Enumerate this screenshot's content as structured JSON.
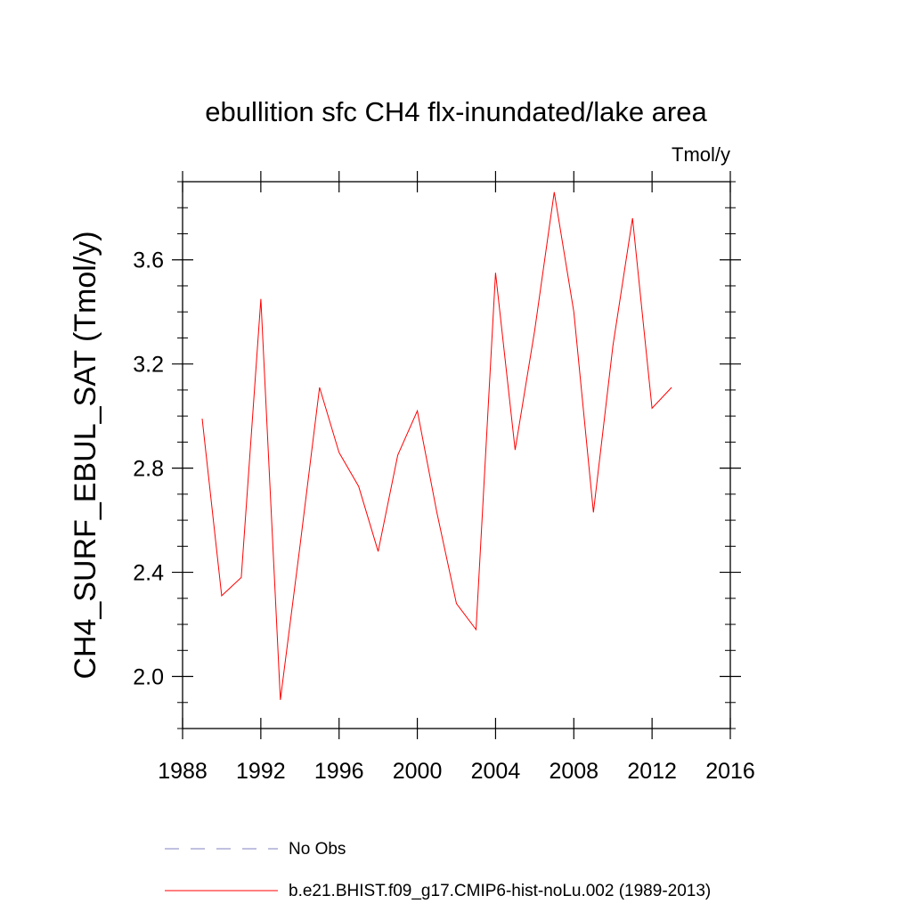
{
  "chart_data": {
    "type": "line",
    "title": "ebullition sfc CH4 flx-inundated/lake area",
    "units": "Tmol/y",
    "xlabel": "",
    "ylabel": "CH4_SURF_EBUL_SAT  (Tmol/y)",
    "xlim": [
      1988,
      2016
    ],
    "ylim": [
      1.8,
      3.9
    ],
    "x_ticks": [
      1988,
      1992,
      1996,
      2000,
      2004,
      2008,
      2012,
      2016
    ],
    "x_tick_labels": [
      "1988",
      "1992",
      "1996",
      "2000",
      "2004",
      "2008",
      "2012",
      "2016"
    ],
    "y_ticks": [
      2.0,
      2.4,
      2.8,
      3.2,
      3.6
    ],
    "y_tick_labels": [
      "2.0",
      "2.4",
      "2.8",
      "3.2",
      "3.6"
    ],
    "grid": false,
    "legend_position": "bottom",
    "series": [
      {
        "name": "b.e21.BHIST.f09_g17.CMIP6-hist-noLu.002 (1989-2013)",
        "color": "#ff0000",
        "style": "solid",
        "x": [
          1989,
          1990,
          1991,
          1992,
          1993,
          1994,
          1995,
          1996,
          1997,
          1998,
          1999,
          2000,
          2001,
          2002,
          2003,
          2004,
          2005,
          2006,
          2007,
          2008,
          2009,
          2010,
          2011,
          2012,
          2013
        ],
        "values": [
          2.99,
          2.31,
          2.38,
          3.45,
          1.91,
          2.5,
          3.11,
          2.86,
          2.73,
          2.48,
          2.85,
          3.02,
          2.63,
          2.28,
          2.18,
          3.55,
          2.87,
          3.33,
          3.86,
          3.4,
          2.63,
          3.27,
          3.76,
          3.03,
          3.11
        ]
      }
    ],
    "legend": [
      {
        "label": "No Obs",
        "color": "#8080c0",
        "style": "dashed"
      },
      {
        "label": "b.e21.BHIST.f09_g17.CMIP6-hist-noLu.002 (1989-2013)",
        "color": "#ff0000",
        "style": "solid"
      }
    ]
  }
}
